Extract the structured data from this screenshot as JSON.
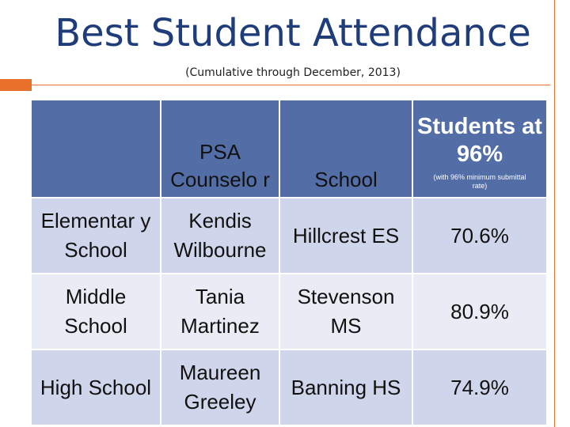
{
  "title": "Best Student Attendance",
  "subtitle": "(Cumulative through December, 2013)",
  "colors": {
    "title": "#1f3d7a",
    "accent": "#e8702a",
    "header_fill": "#536ea7",
    "row_dark": "#cfd5ea",
    "row_light": "#e9ebf5"
  },
  "table": {
    "headers": {
      "level": "",
      "counselor": "PSA Counselo r",
      "school": "School",
      "students": "Students at 96%",
      "students_note": "(with 96% minimum submittal rate)"
    },
    "rows": [
      {
        "level": "Elementar y School",
        "counselor": "Kendis Wilbourne",
        "school": "Hillcrest ES",
        "pct": "70.6%"
      },
      {
        "level": "Middle School",
        "counselor": "Tania Martinez",
        "school": "Stevenson MS",
        "pct": "80.9%"
      },
      {
        "level": "High School",
        "counselor": "Maureen Greeley",
        "school": "Banning HS",
        "pct": "74.9%"
      }
    ]
  }
}
